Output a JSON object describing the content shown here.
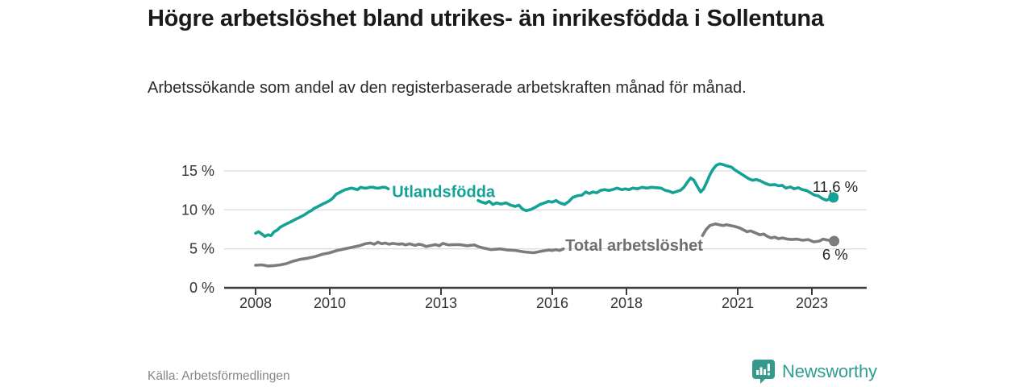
{
  "header": {
    "title": "Högre arbetslöshet bland utrikes- än inrikesfödda i Sollentuna",
    "subtitle": "Arbetssökande som andel av den registerbaserade arbetskraften månad för månad."
  },
  "footer": {
    "source": "Källa: Arbetsförmedlingen",
    "brand": "Newsworthy"
  },
  "colors": {
    "foreign_born_line": "#13a295",
    "total_line": "#7c7c7c",
    "total_label": "#6f6f6f",
    "grid": "#dddddd",
    "axis": "#3d3d3d",
    "tick_text": "#333333",
    "annotation_text": "#222222",
    "logo_teal": "#37998c"
  },
  "chart_data": {
    "type": "line",
    "title": "Högre arbetslöshet bland utrikes- än inrikesfödda i Sollentuna",
    "subtitle": "Arbetssökande som andel av den registerbaserade arbetskraften månad för månad.",
    "xlabel": "",
    "ylabel": "",
    "grid": true,
    "x_axis": {
      "range": [
        2007.15,
        2024.5
      ],
      "ticks": [
        2008,
        2010,
        2013,
        2016,
        2018,
        2021,
        2023
      ],
      "tick_labels": [
        "2008",
        "2010",
        "2013",
        "2016",
        "2018",
        "2021",
        "2023"
      ]
    },
    "y_axis": {
      "range": [
        0,
        16.6
      ],
      "unit": "%",
      "ticks": [
        0,
        5,
        10,
        15
      ],
      "tick_labels": [
        "0 %",
        "5 %",
        "10 %",
        "15 %"
      ]
    },
    "series": [
      {
        "name": "Utlandsfödda",
        "color": "#13a295",
        "label_at": {
          "x": 2011.68,
          "y": 12.35
        },
        "value_label": {
          "text": "11,6 %",
          "x": 2023.02,
          "y": 12.95
        },
        "end_value": 11.6,
        "segments": [
          [
            [
              2008.0,
              7.0
            ],
            [
              2008.08,
              7.2
            ],
            [
              2008.17,
              6.9
            ],
            [
              2008.25,
              6.6
            ],
            [
              2008.33,
              6.8
            ],
            [
              2008.42,
              6.7
            ],
            [
              2008.5,
              7.2
            ],
            [
              2008.58,
              7.4
            ],
            [
              2008.67,
              7.8
            ],
            [
              2008.75,
              8.0
            ],
            [
              2008.83,
              8.2
            ],
            [
              2008.92,
              8.4
            ],
            [
              2009.0,
              8.6
            ],
            [
              2009.08,
              8.8
            ],
            [
              2009.17,
              9.0
            ],
            [
              2009.25,
              9.2
            ],
            [
              2009.33,
              9.4
            ],
            [
              2009.42,
              9.7
            ],
            [
              2009.5,
              9.9
            ],
            [
              2009.58,
              10.2
            ],
            [
              2009.67,
              10.4
            ],
            [
              2009.75,
              10.6
            ],
            [
              2009.83,
              10.8
            ],
            [
              2009.92,
              11.0
            ],
            [
              2010.0,
              11.2
            ],
            [
              2010.08,
              11.5
            ],
            [
              2010.17,
              12.0
            ],
            [
              2010.25,
              12.2
            ],
            [
              2010.33,
              12.4
            ],
            [
              2010.42,
              12.6
            ],
            [
              2010.5,
              12.7
            ],
            [
              2010.58,
              12.8
            ],
            [
              2010.67,
              12.7
            ],
            [
              2010.75,
              12.6
            ],
            [
              2010.83,
              12.9
            ],
            [
              2010.92,
              12.8
            ],
            [
              2011.0,
              12.8
            ],
            [
              2011.08,
              12.9
            ],
            [
              2011.17,
              12.9
            ],
            [
              2011.25,
              12.8
            ],
            [
              2011.33,
              12.8
            ],
            [
              2011.42,
              12.9
            ],
            [
              2011.5,
              12.9
            ],
            [
              2011.58,
              12.7
            ]
          ],
          [
            [
              2014.0,
              11.2
            ],
            [
              2014.1,
              11.0
            ],
            [
              2014.2,
              10.85
            ],
            [
              2014.3,
              11.1
            ],
            [
              2014.4,
              10.7
            ],
            [
              2014.5,
              10.9
            ],
            [
              2014.62,
              10.75
            ],
            [
              2014.75,
              10.9
            ],
            [
              2014.88,
              10.6
            ],
            [
              2015.0,
              10.45
            ],
            [
              2015.1,
              10.6
            ],
            [
              2015.2,
              10.1
            ],
            [
              2015.3,
              9.9
            ],
            [
              2015.42,
              10.05
            ],
            [
              2015.55,
              10.35
            ],
            [
              2015.67,
              10.7
            ],
            [
              2015.8,
              10.9
            ],
            [
              2015.9,
              11.1
            ],
            [
              2016.0,
              11.0
            ],
            [
              2016.1,
              11.2
            ],
            [
              2016.2,
              10.9
            ],
            [
              2016.33,
              10.7
            ],
            [
              2016.45,
              11.1
            ],
            [
              2016.55,
              11.6
            ],
            [
              2016.67,
              11.8
            ],
            [
              2016.8,
              11.9
            ],
            [
              2016.9,
              12.3
            ],
            [
              2017.0,
              12.1
            ],
            [
              2017.1,
              12.3
            ],
            [
              2017.2,
              12.2
            ],
            [
              2017.3,
              12.5
            ],
            [
              2017.42,
              12.6
            ],
            [
              2017.52,
              12.5
            ],
            [
              2017.62,
              12.6
            ],
            [
              2017.75,
              12.8
            ],
            [
              2017.87,
              12.6
            ],
            [
              2017.97,
              12.7
            ],
            [
              2018.07,
              12.6
            ],
            [
              2018.17,
              12.8
            ],
            [
              2018.3,
              12.7
            ],
            [
              2018.42,
              12.9
            ],
            [
              2018.55,
              12.8
            ],
            [
              2018.67,
              12.9
            ],
            [
              2018.8,
              12.85
            ],
            [
              2018.93,
              12.8
            ],
            [
              2019.05,
              12.5
            ],
            [
              2019.15,
              12.4
            ],
            [
              2019.25,
              12.2
            ],
            [
              2019.35,
              12.35
            ],
            [
              2019.45,
              12.5
            ],
            [
              2019.55,
              12.9
            ],
            [
              2019.65,
              13.6
            ],
            [
              2019.73,
              14.1
            ],
            [
              2019.82,
              13.8
            ],
            [
              2019.9,
              13.1
            ],
            [
              2020.0,
              12.3
            ],
            [
              2020.08,
              12.7
            ],
            [
              2020.17,
              13.6
            ],
            [
              2020.25,
              14.5
            ],
            [
              2020.33,
              15.2
            ],
            [
              2020.42,
              15.7
            ],
            [
              2020.5,
              15.9
            ],
            [
              2020.58,
              15.85
            ],
            [
              2020.67,
              15.7
            ],
            [
              2020.75,
              15.6
            ],
            [
              2020.83,
              15.5
            ],
            [
              2020.92,
              15.15
            ],
            [
              2021.0,
              14.9
            ],
            [
              2021.1,
              14.6
            ],
            [
              2021.2,
              14.3
            ],
            [
              2021.3,
              14.0
            ],
            [
              2021.4,
              13.8
            ],
            [
              2021.5,
              13.9
            ],
            [
              2021.62,
              13.7
            ],
            [
              2021.75,
              13.4
            ],
            [
              2021.87,
              13.2
            ],
            [
              2022.0,
              13.25
            ],
            [
              2022.1,
              13.1
            ],
            [
              2022.2,
              13.15
            ],
            [
              2022.3,
              12.8
            ],
            [
              2022.42,
              12.95
            ],
            [
              2022.52,
              12.7
            ],
            [
              2022.63,
              12.85
            ],
            [
              2022.74,
              12.6
            ],
            [
              2022.85,
              12.5
            ],
            [
              2022.96,
              12.2
            ],
            [
              2023.07,
              11.9
            ],
            [
              2023.17,
              11.8
            ],
            [
              2023.28,
              11.45
            ],
            [
              2023.39,
              11.25
            ],
            [
              2023.48,
              11.4
            ],
            [
              2023.58,
              11.6
            ]
          ]
        ]
      },
      {
        "name": "Total arbetslöshet",
        "color": "#7c7c7c",
        "label_at": {
          "x": 2016.35,
          "y": 5.5
        },
        "value_label": {
          "text": "6 %",
          "x": 2023.28,
          "y": 4.25
        },
        "end_value": 6.0,
        "segments": [
          [
            [
              2008.0,
              2.9
            ],
            [
              2008.17,
              2.95
            ],
            [
              2008.33,
              2.8
            ],
            [
              2008.5,
              2.85
            ],
            [
              2008.67,
              2.95
            ],
            [
              2008.83,
              3.1
            ],
            [
              2009.0,
              3.4
            ],
            [
              2009.2,
              3.65
            ],
            [
              2009.4,
              3.8
            ],
            [
              2009.6,
              4.0
            ],
            [
              2009.8,
              4.3
            ],
            [
              2010.0,
              4.5
            ],
            [
              2010.2,
              4.8
            ],
            [
              2010.4,
              5.0
            ],
            [
              2010.6,
              5.2
            ],
            [
              2010.8,
              5.4
            ],
            [
              2010.95,
              5.65
            ],
            [
              2011.1,
              5.75
            ],
            [
              2011.2,
              5.6
            ],
            [
              2011.3,
              5.85
            ],
            [
              2011.4,
              5.65
            ],
            [
              2011.5,
              5.75
            ],
            [
              2011.6,
              5.6
            ],
            [
              2011.7,
              5.7
            ],
            [
              2011.85,
              5.6
            ],
            [
              2011.95,
              5.65
            ],
            [
              2012.05,
              5.5
            ],
            [
              2012.15,
              5.65
            ],
            [
              2012.3,
              5.45
            ],
            [
              2012.4,
              5.6
            ],
            [
              2012.5,
              5.5
            ],
            [
              2012.6,
              5.3
            ],
            [
              2012.7,
              5.4
            ],
            [
              2012.85,
              5.55
            ],
            [
              2012.95,
              5.4
            ],
            [
              2013.05,
              5.7
            ],
            [
              2013.2,
              5.5
            ],
            [
              2013.35,
              5.55
            ],
            [
              2013.5,
              5.55
            ],
            [
              2013.7,
              5.4
            ],
            [
              2013.9,
              5.5
            ],
            [
              2014.0,
              5.3
            ],
            [
              2014.15,
              5.1
            ],
            [
              2014.35,
              4.9
            ],
            [
              2014.6,
              5.0
            ],
            [
              2014.8,
              4.85
            ],
            [
              2015.0,
              4.8
            ],
            [
              2015.25,
              4.6
            ],
            [
              2015.5,
              4.5
            ],
            [
              2015.7,
              4.7
            ],
            [
              2015.9,
              4.85
            ],
            [
              2016.0,
              4.8
            ],
            [
              2016.1,
              4.9
            ],
            [
              2016.2,
              4.8
            ],
            [
              2016.3,
              5.0
            ]
          ],
          [
            [
              2020.05,
              6.7
            ],
            [
              2020.15,
              7.5
            ],
            [
              2020.25,
              8.0
            ],
            [
              2020.4,
              8.2
            ],
            [
              2020.5,
              8.1
            ],
            [
              2020.6,
              8.0
            ],
            [
              2020.7,
              8.1
            ],
            [
              2020.8,
              8.0
            ],
            [
              2020.9,
              7.9
            ],
            [
              2021.05,
              7.7
            ],
            [
              2021.15,
              7.45
            ],
            [
              2021.25,
              7.2
            ],
            [
              2021.35,
              7.3
            ],
            [
              2021.5,
              7.0
            ],
            [
              2021.6,
              6.8
            ],
            [
              2021.7,
              6.9
            ],
            [
              2021.8,
              6.6
            ],
            [
              2021.9,
              6.4
            ],
            [
              2022.0,
              6.5
            ],
            [
              2022.1,
              6.3
            ],
            [
              2022.2,
              6.4
            ],
            [
              2022.35,
              6.25
            ],
            [
              2022.45,
              6.2
            ],
            [
              2022.6,
              6.25
            ],
            [
              2022.75,
              6.1
            ],
            [
              2022.9,
              6.2
            ],
            [
              2023.05,
              5.9
            ],
            [
              2023.2,
              6.0
            ],
            [
              2023.3,
              6.25
            ],
            [
              2023.45,
              6.1
            ],
            [
              2023.6,
              6.0
            ]
          ]
        ]
      }
    ]
  }
}
